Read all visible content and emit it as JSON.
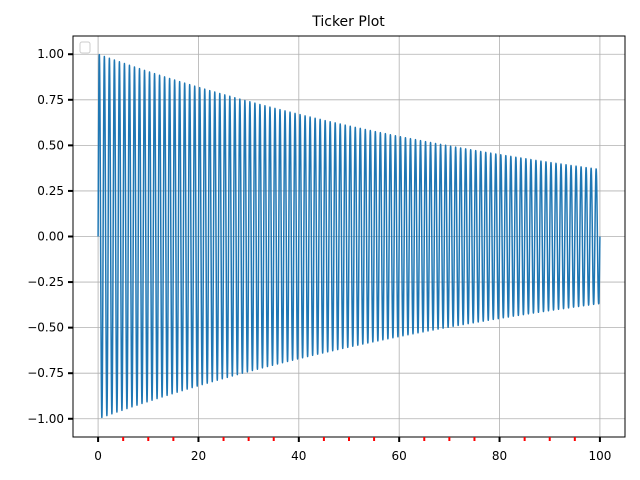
{
  "chart_data": {
    "type": "line",
    "title": "Ticker Plot",
    "xlabel": "",
    "ylabel": "",
    "xlim": [
      -5,
      105
    ],
    "ylim": [
      -1.1,
      1.1
    ],
    "grid": true,
    "legend": "top-left (empty)",
    "series": [
      {
        "function": "sin(2*pi*x) * exp(-x/100)",
        "x_range": [
          0,
          100
        ],
        "color": "#1f77b4"
      }
    ],
    "x_major_ticks": [
      0,
      20,
      40,
      60,
      80,
      100
    ],
    "x_major_tick_labels": [
      "0",
      "20",
      "40",
      "60",
      "80",
      "100"
    ],
    "x_minor_ticks": [
      5,
      10,
      15,
      25,
      30,
      35,
      45,
      50,
      55,
      65,
      70,
      75,
      85,
      90,
      95
    ],
    "x_minor_tick_color": "#ff0000",
    "y_major_ticks": [
      -1.0,
      -0.75,
      -0.5,
      -0.25,
      0.0,
      0.25,
      0.5,
      0.75,
      1.0
    ],
    "y_major_tick_labels": [
      "−1.00",
      "−0.75",
      "−0.50",
      "−0.25",
      "0.00",
      "0.25",
      "0.50",
      "0.75",
      "1.00"
    ],
    "colors": {
      "line": "#1f77b4",
      "grid": "#b0b0b0",
      "axes": "#000000",
      "minor_tick": "#ff0000"
    }
  }
}
